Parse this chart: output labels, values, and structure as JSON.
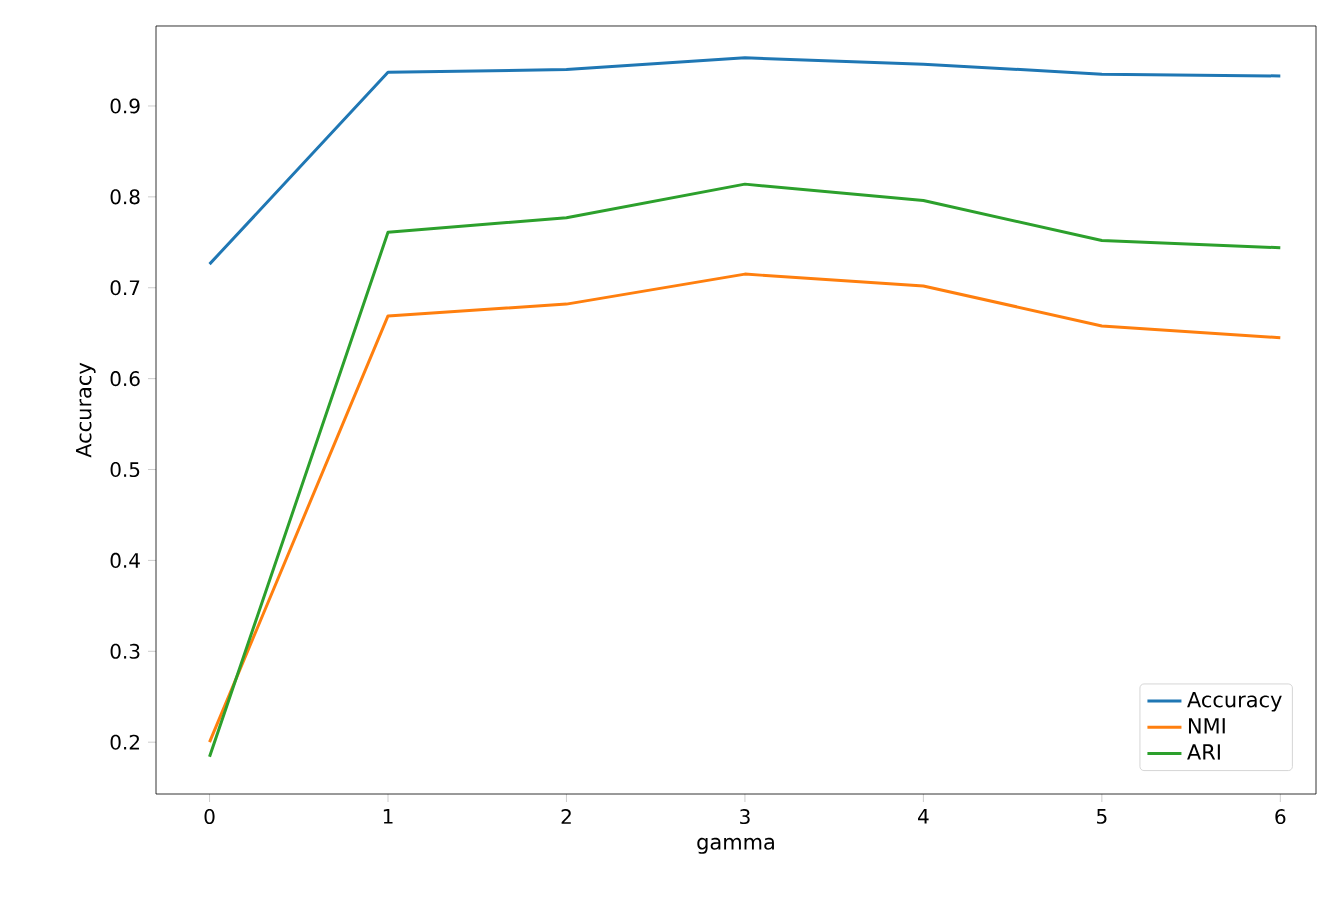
{
  "chart_data": {
    "type": "line",
    "xlabel": "gamma",
    "ylabel": "Accuracy",
    "x": [
      0,
      1,
      2,
      3,
      4,
      5,
      6
    ],
    "series": [
      {
        "name": "Accuracy",
        "color": "#1f77b4",
        "values": [
          0.726,
          0.937,
          0.94,
          0.953,
          0.946,
          0.935,
          0.933
        ]
      },
      {
        "name": "NMI",
        "color": "#ff7f0e",
        "values": [
          0.2,
          0.669,
          0.682,
          0.715,
          0.702,
          0.658,
          0.645
        ]
      },
      {
        "name": "ARI",
        "color": "#2ca02c",
        "values": [
          0.184,
          0.761,
          0.777,
          0.814,
          0.796,
          0.752,
          0.744
        ]
      }
    ],
    "xlim": [
      -0.3,
      6.2
    ],
    "ylim": [
      0.143,
      0.988
    ],
    "xticks": [
      0,
      1,
      2,
      3,
      4,
      5,
      6
    ],
    "yticks": [
      0.2,
      0.3,
      0.4,
      0.5,
      0.6,
      0.7,
      0.8,
      0.9
    ],
    "legend": "bottom right",
    "grid": false
  }
}
